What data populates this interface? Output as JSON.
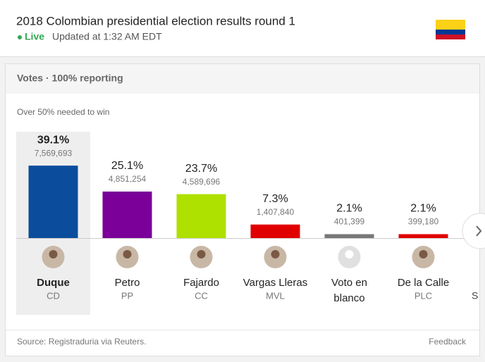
{
  "header": {
    "title": "2018 Colombian presidential election results round 1",
    "live": "Live",
    "updated": "Updated at 1:32 AM EDT"
  },
  "panel": {
    "heading": "Votes · 100% reporting",
    "note": "Over 50% needed to win",
    "source": "Source: Registraduria via Reuters.",
    "feedback": "Feedback",
    "overflow_label": "S"
  },
  "chart_data": {
    "type": "bar",
    "categories": [
      "Duque",
      "Petro",
      "Fajardo",
      "Vargas Lleras",
      "Voto en blanco",
      "De la Calle"
    ],
    "parties": [
      "CD",
      "PP",
      "CC",
      "MVL",
      null,
      "PLC"
    ],
    "values": [
      39.1,
      25.1,
      23.7,
      7.3,
      2.1,
      2.1
    ],
    "value_labels": [
      "39.1%",
      "25.1%",
      "23.7%",
      "7.3%",
      "2.1%",
      "2.1%"
    ],
    "vote_labels": [
      "7,569,693",
      "4,851,254",
      "4,589,696",
      "1,407,840",
      "401,399",
      "399,180"
    ],
    "colors": [
      "#0b4d9c",
      "#7a0099",
      "#aee100",
      "#e10000",
      "#777777",
      "#e10000"
    ]
  }
}
